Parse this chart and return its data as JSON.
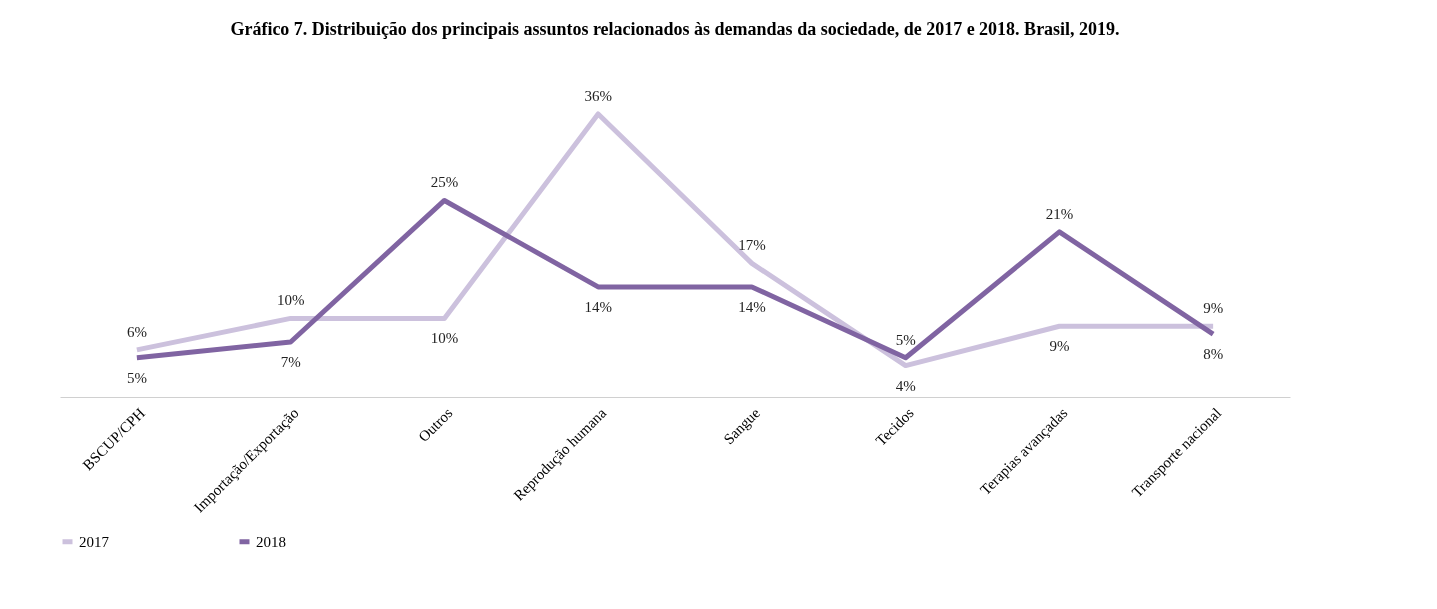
{
  "chart_data": {
    "type": "line",
    "title": "Gráfico 7. Distribuição dos principais assuntos relacionados às demandas da sociedade, de 2017 e 2018. Brasil, 2019.",
    "categories": [
      "BSCUP/CPH",
      "Importação/Exportação",
      "Outros",
      "Reprodução humana",
      "Sangue",
      "Tecidos",
      "Terapias avançadas",
      "Transporte nacional"
    ],
    "series": [
      {
        "name": "2017",
        "color": "#ccc1dd",
        "values": [
          6,
          10,
          10,
          36,
          17,
          4,
          9,
          9
        ],
        "value_labels": [
          "6%",
          "10%",
          "10%",
          "36%",
          "17%",
          "4%",
          "9%",
          "9%"
        ]
      },
      {
        "name": "2018",
        "color": "#8064a2",
        "values": [
          5,
          7,
          25,
          14,
          14,
          5,
          21,
          8
        ],
        "value_labels": [
          "5%",
          "7%",
          "25%",
          "14%",
          "14%",
          "5%",
          "21%",
          "8%"
        ]
      }
    ],
    "legend": "bottom",
    "grid": false,
    "marker": "none",
    "line_style": "solid"
  }
}
